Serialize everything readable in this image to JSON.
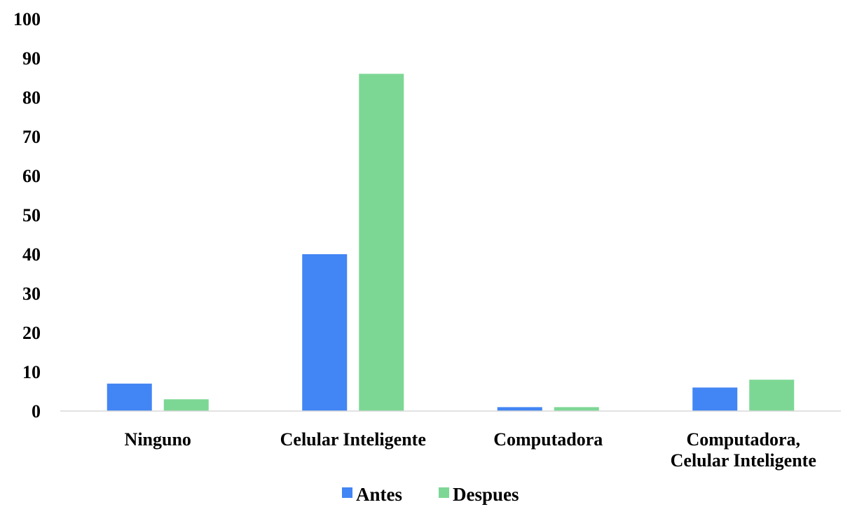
{
  "chart_data": {
    "type": "bar",
    "categories": [
      [
        "Ninguno"
      ],
      [
        "Celular Inteligente"
      ],
      [
        "Computadora"
      ],
      [
        "Computadora,",
        "Celular Inteligente"
      ]
    ],
    "series": [
      {
        "name": "Antes",
        "color": "#4285F4",
        "values": [
          7,
          40,
          1,
          6
        ]
      },
      {
        "name": "Despues",
        "color": "#7DD794",
        "values": [
          3,
          86,
          1,
          8
        ]
      }
    ],
    "y_ticks": [
      "0",
      "10",
      "20",
      "30",
      "40",
      "50",
      "60",
      "70",
      "80",
      "90",
      "100"
    ],
    "ylim": [
      0,
      100
    ],
    "grid": false,
    "legend_position": "bottom",
    "axis_color": "#D9D9D9"
  }
}
